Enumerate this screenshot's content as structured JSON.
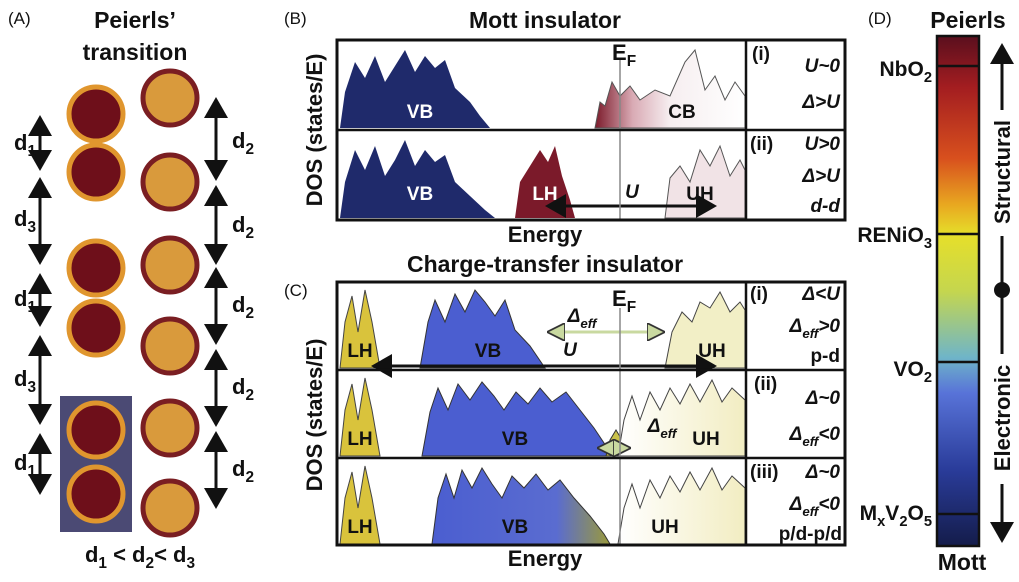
{
  "panel_a": {
    "label": "(A)",
    "title": [
      "Peierls’",
      "transition"
    ],
    "left_spacings": [
      [
        "d",
        "1"
      ],
      [
        "d",
        "3"
      ],
      [
        "d",
        "1"
      ],
      [
        "d",
        "3"
      ],
      [
        "d",
        "1"
      ]
    ],
    "right_spacings": [
      [
        "d",
        "2"
      ],
      [
        "d",
        "2"
      ],
      [
        "d",
        "2"
      ],
      [
        "d",
        "2"
      ],
      [
        "d",
        "2"
      ]
    ],
    "relation": [
      "d",
      "1",
      " < d",
      "2",
      "< d",
      "3"
    ]
  },
  "panel_b": {
    "label": "(B)",
    "title": "Mott insulator",
    "y_label": "DOS (states/E)",
    "x_label": "Energy",
    "fermi": [
      "E",
      "F"
    ],
    "rows": [
      {
        "id": "(i)",
        "bands": [
          "VB",
          "CB"
        ],
        "conditions": [
          "U~0",
          "Δ>U"
        ]
      },
      {
        "id": "(ii)",
        "bands": [
          "VB",
          "LH",
          "UH"
        ],
        "gap": "U",
        "conditions": [
          "U>0",
          "Δ>U",
          "d-d"
        ]
      }
    ]
  },
  "panel_c": {
    "label": "(C)",
    "title": "Charge-transfer insulator",
    "y_label": "DOS (states/E)",
    "x_label": "Energy",
    "fermi": [
      "E",
      "F"
    ],
    "rows": [
      {
        "id": "(i)",
        "bands": [
          "LH",
          "VB",
          "UH"
        ],
        "gaps": [
          [
            "Δ",
            "eff"
          ],
          "U"
        ],
        "conditions": [
          [
            "Δ<U"
          ],
          [
            "Δ",
            "eff",
            ">0"
          ],
          [
            "p-d"
          ]
        ]
      },
      {
        "id": "(ii)",
        "bands": [
          "LH",
          "VB",
          "UH"
        ],
        "gaps": [
          [
            "Δ",
            "eff"
          ]
        ],
        "conditions": [
          [
            "Δ~0"
          ],
          [
            "Δ",
            "eff",
            "<0"
          ]
        ]
      },
      {
        "id": "(iii)",
        "bands": [
          "LH",
          "VB",
          "UH"
        ],
        "conditions": [
          [
            "Δ~0"
          ],
          [
            "Δ",
            "eff",
            "<0"
          ],
          [
            "p/d-p/d"
          ]
        ]
      }
    ]
  },
  "panel_d": {
    "label": "(D)",
    "top": "Peierls",
    "bottom": "Mott",
    "materials": [
      [
        "NbO",
        "2"
      ],
      [
        "RENiO",
        "3"
      ],
      [
        "VO",
        "2"
      ],
      [
        "M",
        "x",
        "V",
        "2",
        "O",
        "5"
      ]
    ],
    "regimes": [
      "Structural",
      "Electronic"
    ]
  }
}
